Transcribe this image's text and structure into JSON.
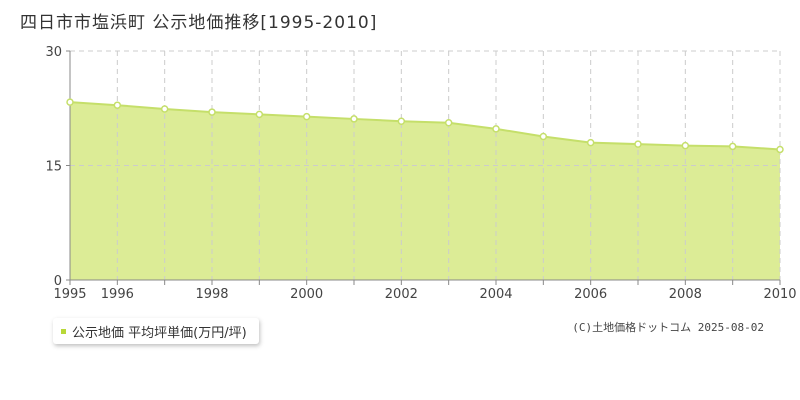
{
  "title": "四日市市塩浜町 公示地価推移[1995-2010]",
  "credit": "(C)土地価格ドットコム 2025-08-02",
  "colors": {
    "fill": "#dcec96",
    "line": "#c5df6a",
    "grid": "#cccccc",
    "axis": "#888888",
    "legend_marker": "#b8d838"
  },
  "chart_data": {
    "type": "area",
    "x": [
      1995,
      1996,
      1997,
      1998,
      1999,
      2000,
      2001,
      2002,
      2003,
      2004,
      2005,
      2006,
      2007,
      2008,
      2009,
      2010
    ],
    "series": [
      {
        "name": "公示地価 平均坪単価(万円/坪)",
        "values": [
          23.3,
          22.9,
          22.4,
          22.0,
          21.7,
          21.4,
          21.1,
          20.8,
          20.6,
          19.8,
          18.8,
          18.0,
          17.8,
          17.6,
          17.5,
          17.1
        ]
      }
    ],
    "xlim": [
      1995,
      2010
    ],
    "ylim": [
      0,
      30
    ],
    "x_tick_labels": [
      "1995",
      "1996",
      "1998",
      "2000",
      "2002",
      "2004",
      "2006",
      "2008",
      "2010"
    ],
    "y_tick_labels": [
      "0",
      "15",
      "30"
    ],
    "grid": true,
    "legend": "bottom-left"
  }
}
